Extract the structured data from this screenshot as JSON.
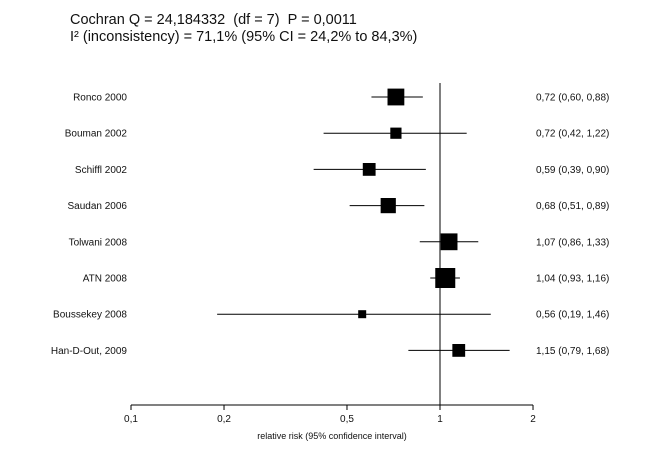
{
  "header": {
    "line1": "Cochran Q = 24,184332  (df = 7)  P = 0,0011",
    "line2": "I² (inconsistency) = 71,1% (95% CI = 24,2% to 84,3%)"
  },
  "chart_data": {
    "type": "forest",
    "xlabel": "relative risk (95% confidence interval)",
    "xscale": "log",
    "xlim": [
      0.1,
      2
    ],
    "xticks": [
      {
        "value": 0.1,
        "label": "0,1"
      },
      {
        "value": 0.2,
        "label": "0,2"
      },
      {
        "value": 0.5,
        "label": "0,5"
      },
      {
        "value": 1,
        "label": "1"
      },
      {
        "value": 2,
        "label": "2"
      }
    ],
    "reference_line": 1,
    "studies": [
      {
        "name": "Ronco 2000",
        "rr": 0.72,
        "lo": 0.6,
        "hi": 0.88,
        "ci_text": "0,72 (0,60, 0,88)",
        "weight": 16
      },
      {
        "name": "Bouman 2002",
        "rr": 0.72,
        "lo": 0.42,
        "hi": 1.22,
        "ci_text": "0,72 (0,42, 1,22)",
        "weight": 9
      },
      {
        "name": "Schiffl 2002",
        "rr": 0.59,
        "lo": 0.39,
        "hi": 0.9,
        "ci_text": "0,59 (0,39, 0,90)",
        "weight": 11
      },
      {
        "name": "Saudan 2006",
        "rr": 0.68,
        "lo": 0.51,
        "hi": 0.89,
        "ci_text": "0,68 (0,51, 0,89)",
        "weight": 14
      },
      {
        "name": "Tolwani 2008",
        "rr": 1.07,
        "lo": 0.86,
        "hi": 1.33,
        "ci_text": "1,07 (0,86, 1,33)",
        "weight": 16
      },
      {
        "name": "ATN 2008",
        "rr": 1.04,
        "lo": 0.93,
        "hi": 1.16,
        "ci_text": "1,04 (0,93, 1,16)",
        "weight": 20
      },
      {
        "name": "Boussekey 2008",
        "rr": 0.56,
        "lo": 0.19,
        "hi": 1.46,
        "ci_text": "0,56 (0,19, 1,46)",
        "weight": 5
      },
      {
        "name": "Han-D-Out, 2009",
        "rr": 1.15,
        "lo": 0.79,
        "hi": 1.68,
        "ci_text": "1,15 (0,79, 1,68)",
        "weight": 11
      }
    ]
  }
}
